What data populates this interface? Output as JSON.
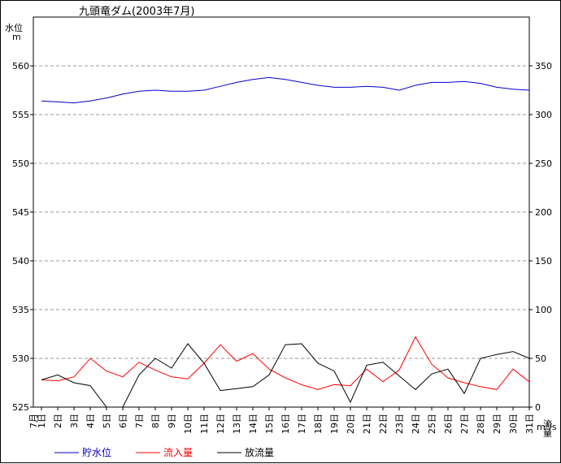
{
  "chart_data": {
    "type": "line",
    "title": "九頭竜ダム(2003年7月)",
    "ylabel_left": [
      "水位",
      "m"
    ],
    "ylabel_right": [
      "流量",
      "m³/s"
    ],
    "ylim_left": [
      525,
      565
    ],
    "yticks_left": [
      525,
      530,
      535,
      540,
      545,
      550,
      555,
      560
    ],
    "ylim_right": [
      0,
      400
    ],
    "yticks_right": [
      0,
      50,
      100,
      150,
      200,
      250,
      300,
      350
    ],
    "grid": "horizontal dashed",
    "month_label": "7月",
    "categories": [
      "1日",
      "2日",
      "3日",
      "4日",
      "5日",
      "6日",
      "7日",
      "8日",
      "9日",
      "10日",
      "11日",
      "12日",
      "13日",
      "14日",
      "15日",
      "16日",
      "17日",
      "18日",
      "19日",
      "20日",
      "21日",
      "22日",
      "23日",
      "24日",
      "25日",
      "26日",
      "27日",
      "28日",
      "29日",
      "30日",
      "31日"
    ],
    "series": [
      {
        "name": "貯水位",
        "axis": "left",
        "color": "#0000cc",
        "values": [
          556.4,
          556.3,
          556.2,
          556.4,
          556.7,
          557.1,
          557.4,
          557.5,
          557.4,
          557.4,
          557.5,
          557.9,
          558.3,
          558.6,
          558.8,
          558.6,
          558.3,
          558.0,
          557.8,
          557.8,
          557.9,
          557.8,
          557.5,
          558.0,
          558.3,
          558.3,
          558.4,
          558.2,
          557.8,
          557.6,
          557.5
        ]
      },
      {
        "name": "流入量",
        "axis": "right",
        "color": "#ff0000",
        "values": [
          28,
          27,
          31,
          50,
          37,
          31,
          46,
          38,
          31,
          29,
          45,
          64,
          47,
          55,
          39,
          30,
          23,
          18,
          23,
          22,
          39,
          26,
          38,
          72,
          44,
          30,
          25,
          21,
          18,
          39,
          26
        ]
      },
      {
        "name": "放流量",
        "axis": "right",
        "color": "#000000",
        "values": [
          28,
          33,
          25,
          22,
          0,
          0,
          33,
          50,
          40,
          65,
          45,
          17,
          19,
          21,
          33,
          64,
          65,
          45,
          37,
          5,
          43,
          46,
          32,
          18,
          34,
          39,
          14,
          50,
          54,
          57,
          50
        ]
      }
    ],
    "legend": [
      "貯水位",
      "流入量",
      "放流量"
    ],
    "legend_position": "bottom-left"
  }
}
